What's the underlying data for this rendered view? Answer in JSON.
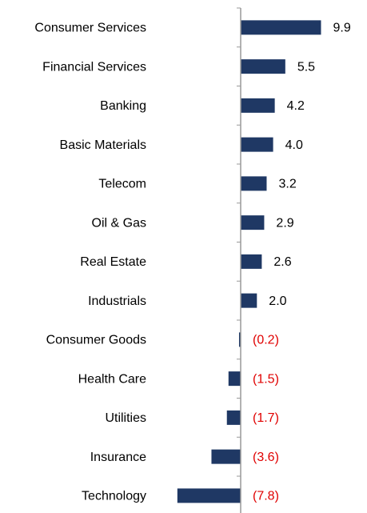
{
  "chart_data": {
    "type": "bar",
    "orientation": "horizontal",
    "categories": [
      "Consumer Services",
      "Financial Services",
      "Banking",
      "Basic Materials",
      "Telecom",
      "Oil & Gas",
      "Real Estate",
      "Industrials",
      "Consumer Goods",
      "Health Care",
      "Utilities",
      "Insurance",
      "Technology"
    ],
    "values": [
      9.9,
      5.5,
      4.2,
      4.0,
      3.2,
      2.9,
      2.6,
      2.0,
      -0.2,
      -1.5,
      -1.7,
      -3.6,
      -7.8
    ],
    "value_labels": [
      "9.9",
      "5.5",
      "4.2",
      "4.0",
      "3.2",
      "2.9",
      "2.6",
      "2.0",
      "(0.2)",
      "(1.5)",
      "(1.7)",
      "(3.6)",
      "(7.8)"
    ],
    "color": "#1f3864",
    "label_color": "#000000",
    "negative_label_color": "#e00000"
  }
}
